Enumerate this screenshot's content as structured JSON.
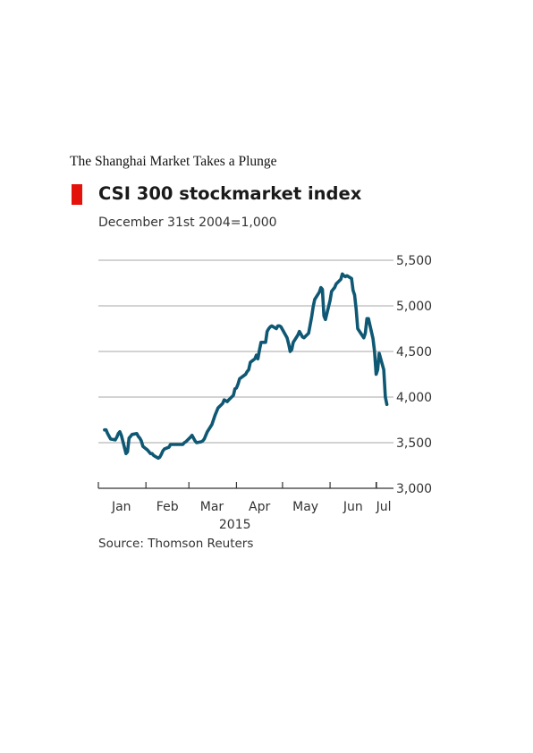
{
  "page": {
    "heading": "The Shanghai Market Takes a Plunge"
  },
  "chart_data": {
    "type": "line",
    "title": "CSI 300 stockmarket index",
    "subtitle": "December 31st 2004=1,000",
    "source": "Source: Thomson Reuters",
    "xlabel": "",
    "ylabel": "",
    "ylim": [
      3000,
      5500
    ],
    "yticks": [
      3000,
      3500,
      4000,
      4500,
      5000,
      5500
    ],
    "ytick_labels": [
      "3,000",
      "3,500",
      "4,000",
      "4,500",
      "5,000",
      "5,500"
    ],
    "y_axis_side": "right",
    "grid": true,
    "x_range": [
      "2015-01-01",
      "2015-07-10"
    ],
    "x_month_labels": [
      "Jan",
      "Feb",
      "Mar",
      "Apr",
      "May",
      "Jun",
      "Jul"
    ],
    "x_year_label": "2015",
    "colors": {
      "line": "#0f5874",
      "accent": "#e3120b",
      "grid": "#b9b9b9"
    },
    "series": [
      {
        "x": [
          "2015-01-05",
          "2015-01-06",
          "2015-01-07",
          "2015-01-08",
          "2015-01-09",
          "2015-01-12",
          "2015-01-13",
          "2015-01-14",
          "2015-01-15",
          "2015-01-16",
          "2015-01-19",
          "2015-01-20",
          "2015-01-21",
          "2015-01-22",
          "2015-01-23",
          "2015-01-26",
          "2015-01-27",
          "2015-01-28",
          "2015-01-29",
          "2015-01-30",
          "2015-02-02",
          "2015-02-03",
          "2015-02-04",
          "2015-02-05",
          "2015-02-06",
          "2015-02-09",
          "2015-02-10",
          "2015-02-11",
          "2015-02-12",
          "2015-02-13",
          "2015-02-16",
          "2015-02-17",
          "2015-02-25",
          "2015-02-26",
          "2015-02-27",
          "2015-03-02",
          "2015-03-03",
          "2015-03-04",
          "2015-03-05",
          "2015-03-06",
          "2015-03-09",
          "2015-03-10",
          "2015-03-11",
          "2015-03-12",
          "2015-03-13",
          "2015-03-16",
          "2015-03-17",
          "2015-03-18",
          "2015-03-19",
          "2015-03-20",
          "2015-03-23",
          "2015-03-24",
          "2015-03-25",
          "2015-03-26",
          "2015-03-27",
          "2015-03-30",
          "2015-03-31",
          "2015-04-01",
          "2015-04-02",
          "2015-04-03",
          "2015-04-07",
          "2015-04-08",
          "2015-04-09",
          "2015-04-10",
          "2015-04-13",
          "2015-04-14",
          "2015-04-15",
          "2015-04-16",
          "2015-04-17",
          "2015-04-20",
          "2015-04-21",
          "2015-04-22",
          "2015-04-23",
          "2015-04-24",
          "2015-04-27",
          "2015-04-28",
          "2015-04-29",
          "2015-04-30",
          "2015-05-04",
          "2015-05-05",
          "2015-05-06",
          "2015-05-07",
          "2015-05-08",
          "2015-05-11",
          "2015-05-12",
          "2015-05-13",
          "2015-05-14",
          "2015-05-15",
          "2015-05-18",
          "2015-05-19",
          "2015-05-20",
          "2015-05-21",
          "2015-05-22",
          "2015-05-25",
          "2015-05-26",
          "2015-05-27",
          "2015-05-28",
          "2015-05-29",
          "2015-06-01",
          "2015-06-02",
          "2015-06-03",
          "2015-06-04",
          "2015-06-05",
          "2015-06-08",
          "2015-06-09",
          "2015-06-10",
          "2015-06-11",
          "2015-06-12",
          "2015-06-15",
          "2015-06-16",
          "2015-06-17",
          "2015-06-18",
          "2015-06-19",
          "2015-06-23",
          "2015-06-24",
          "2015-06-25",
          "2015-06-26",
          "2015-06-29",
          "2015-06-30",
          "2015-07-01",
          "2015-07-02",
          "2015-07-03",
          "2015-07-06",
          "2015-07-07",
          "2015-07-08"
        ],
        "values": [
          3640,
          3640,
          3600,
          3570,
          3540,
          3530,
          3560,
          3600,
          3620,
          3580,
          3380,
          3400,
          3550,
          3570,
          3590,
          3600,
          3570,
          3550,
          3520,
          3460,
          3420,
          3400,
          3380,
          3380,
          3360,
          3330,
          3340,
          3370,
          3410,
          3430,
          3450,
          3480,
          3480,
          3500,
          3510,
          3560,
          3580,
          3550,
          3520,
          3500,
          3510,
          3520,
          3540,
          3580,
          3620,
          3700,
          3750,
          3800,
          3840,
          3880,
          3930,
          3970,
          3960,
          3950,
          3970,
          4020,
          4090,
          4100,
          4140,
          4200,
          4250,
          4280,
          4300,
          4380,
          4420,
          4460,
          4420,
          4520,
          4600,
          4600,
          4720,
          4750,
          4770,
          4780,
          4750,
          4780,
          4780,
          4770,
          4650,
          4580,
          4500,
          4520,
          4600,
          4680,
          4720,
          4690,
          4660,
          4650,
          4700,
          4790,
          4880,
          4990,
          5070,
          5150,
          5200,
          5180,
          4890,
          4850,
          5060,
          5160,
          5180,
          5200,
          5240,
          5290,
          5350,
          5330,
          5320,
          5330,
          5300,
          5170,
          5120,
          4960,
          4750,
          4650,
          4700,
          4860,
          4860,
          4640,
          4500,
          4250,
          4300,
          4480,
          4300,
          4000,
          3920
        ]
      }
    ]
  }
}
